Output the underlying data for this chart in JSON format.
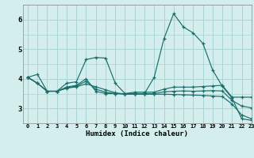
{
  "background_color": "#d4eeee",
  "grid_color": "#aad4d4",
  "line_color": "#1a6e6a",
  "x_min": -0.5,
  "x_max": 23,
  "y_min": 2.5,
  "y_max": 6.5,
  "yticks": [
    3,
    4,
    5,
    6
  ],
  "xticks": [
    0,
    1,
    2,
    3,
    4,
    5,
    6,
    7,
    8,
    9,
    10,
    11,
    12,
    13,
    14,
    15,
    16,
    17,
    18,
    19,
    20,
    21,
    22,
    23
  ],
  "xlabel": "Humidex (Indice chaleur)",
  "series": [
    [
      4.05,
      4.15,
      3.58,
      3.58,
      3.85,
      3.9,
      4.65,
      4.72,
      4.7,
      3.85,
      3.5,
      3.5,
      3.5,
      4.05,
      5.35,
      6.2,
      5.75,
      5.55,
      5.2,
      4.3,
      3.75,
      3.35,
      2.65,
      2.6
    ],
    [
      4.05,
      3.85,
      3.58,
      3.58,
      3.72,
      3.78,
      4.0,
      3.58,
      3.5,
      3.5,
      3.5,
      3.55,
      3.55,
      3.55,
      3.65,
      3.72,
      3.72,
      3.72,
      3.74,
      3.76,
      3.78,
      3.38,
      3.38,
      3.38
    ],
    [
      4.05,
      3.85,
      3.58,
      3.58,
      3.68,
      3.73,
      3.83,
      3.73,
      3.63,
      3.53,
      3.48,
      3.48,
      3.48,
      3.48,
      3.48,
      3.47,
      3.46,
      3.45,
      3.44,
      3.42,
      3.4,
      3.15,
      2.78,
      2.65
    ],
    [
      4.05,
      3.85,
      3.58,
      3.58,
      3.7,
      3.75,
      3.92,
      3.65,
      3.55,
      3.5,
      3.48,
      3.5,
      3.5,
      3.5,
      3.56,
      3.58,
      3.59,
      3.58,
      3.59,
      3.6,
      3.59,
      3.27,
      3.08,
      3.02
    ]
  ]
}
